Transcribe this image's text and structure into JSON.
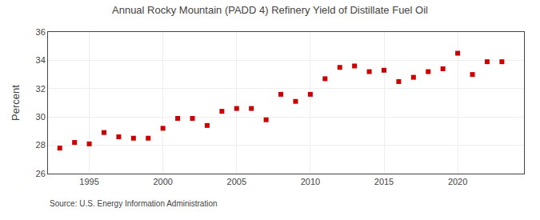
{
  "chart_data": {
    "type": "scatter",
    "title": "Annual Rocky Mountain (PADD 4) Refinery Yield of Distillate Fuel Oil",
    "ylabel": "Percent",
    "annotations": [
      "Source: U.S. Energy Information Administration"
    ],
    "x": [
      1993,
      1994,
      1995,
      1996,
      1997,
      1998,
      1999,
      2000,
      2001,
      2002,
      2003,
      2004,
      2005,
      2006,
      2007,
      2008,
      2009,
      2010,
      2011,
      2012,
      2013,
      2014,
      2015,
      2016,
      2017,
      2018,
      2019,
      2020,
      2021,
      2022,
      2023
    ],
    "values": [
      27.8,
      28.2,
      28.1,
      28.9,
      28.6,
      28.5,
      28.5,
      29.2,
      29.9,
      29.9,
      29.4,
      30.4,
      30.6,
      30.6,
      29.8,
      31.6,
      31.1,
      31.6,
      32.7,
      33.5,
      33.6,
      33.2,
      33.3,
      32.5,
      32.8,
      33.2,
      33.4,
      34.5,
      33.0,
      33.9,
      33.9
    ],
    "color": "#cc0000",
    "marker": "square",
    "xlim": [
      1992.2,
      2024.5
    ],
    "ylim": [
      26,
      36
    ],
    "xticks": [
      1995,
      2000,
      2005,
      2010,
      2015,
      2020
    ],
    "yticks": [
      26,
      28,
      30,
      32,
      34,
      36
    ],
    "grid": true
  }
}
